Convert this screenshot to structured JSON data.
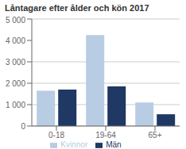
{
  "chart_data": {
    "type": "bar",
    "title": "Låntagare efter ålder och kön 2017",
    "categories": [
      "0-18",
      "19-64",
      "65+"
    ],
    "series": [
      {
        "name": "Kvinnor",
        "color": "#b8cce4",
        "values": [
          1650,
          4250,
          1100
        ]
      },
      {
        "name": "Män",
        "color": "#1f3864",
        "values": [
          1700,
          1850,
          550
        ]
      }
    ],
    "ylim": [
      0,
      5000
    ],
    "yticks": [
      0,
      {
        "value": 1000,
        "label": "1 000"
      },
      {
        "value": 2000,
        "label": "2 000"
      },
      {
        "value": 3000,
        "label": "3 000"
      },
      {
        "value": 4000,
        "label": "4 000"
      },
      {
        "value": 5000,
        "label": "5 000"
      }
    ],
    "grid": true,
    "legend": "bottom"
  }
}
